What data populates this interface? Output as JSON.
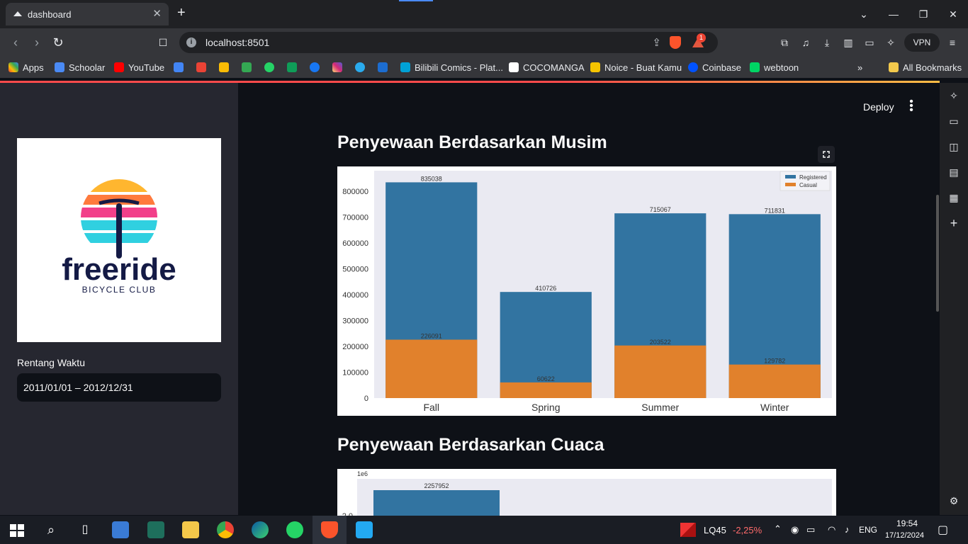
{
  "browser": {
    "tab_title": "dashboard",
    "url": "localhost:8501",
    "vpn_label": "VPN",
    "rewards_badge": "1",
    "bookmarks": [
      "Apps",
      "Schoolar",
      "YouTube",
      "Bilibili Comics - Plat...",
      "COCOMANGA",
      "Noice - Buat Kamu",
      "Coinbase",
      "webtoon"
    ],
    "all_bookmarks": "All Bookmarks",
    "more": "»"
  },
  "sidebar": {
    "logo_word": "freeride",
    "logo_sub": "BICYCLE CLUB",
    "range_label": "Rentang Waktu",
    "range_value": "2011/01/01 – 2012/12/31"
  },
  "header": {
    "deploy_label": "Deploy"
  },
  "section1": {
    "title": "Penyewaan Berdasarkan Musim"
  },
  "section2": {
    "title": "Penyewaan Berdasarkan Cuaca"
  },
  "chart_data": [
    {
      "type": "bar",
      "title": "",
      "categories": [
        "Fall",
        "Spring",
        "Summer",
        "Winter"
      ],
      "series": [
        {
          "name": "Registered",
          "values": [
            835038,
            410726,
            715067,
            711831
          ],
          "color": "#3274a1"
        },
        {
          "name": "Casual",
          "values": [
            226091,
            60622,
            203522,
            129782
          ],
          "color": "#e1812c"
        }
      ],
      "ylim": [
        0,
        880000
      ],
      "yticks": [
        0,
        100000,
        200000,
        300000,
        400000,
        500000,
        600000,
        700000,
        800000
      ],
      "legend": "top-right",
      "grid": false
    },
    {
      "type": "bar",
      "title": "",
      "offset_label": "1e6",
      "visible_tick": "2.0",
      "series": [
        {
          "name": "",
          "values": [
            2257952
          ],
          "color": "#3274a1"
        }
      ]
    }
  ],
  "taskbar": {
    "stock_name": "LQ45",
    "stock_change": "-2,25%",
    "lang": "ENG",
    "time": "19:54",
    "date": "17/12/2024"
  }
}
